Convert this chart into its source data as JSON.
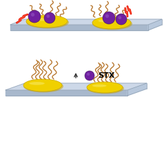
{
  "bg_color": "#ffffff",
  "platform_top_color": "#cdd8e8",
  "platform_side_color": "#b8c8dc",
  "platform_front_color": "#a8b8cc",
  "nanorod_color": "#f0d000",
  "nanorod_shadow": "#c8a800",
  "nanorod_highlight": "#f8e860",
  "stx_color": "#7020a0",
  "stx_highlight": "#9050c0",
  "stx_label": "STX",
  "stx_label_fontsize": 8,
  "aptamer_color": "#b87830",
  "lightning_color": "#e81000",
  "arrow_color": "#303030",
  "fig_width": 2.38,
  "fig_height": 2.21,
  "dpi": 100
}
